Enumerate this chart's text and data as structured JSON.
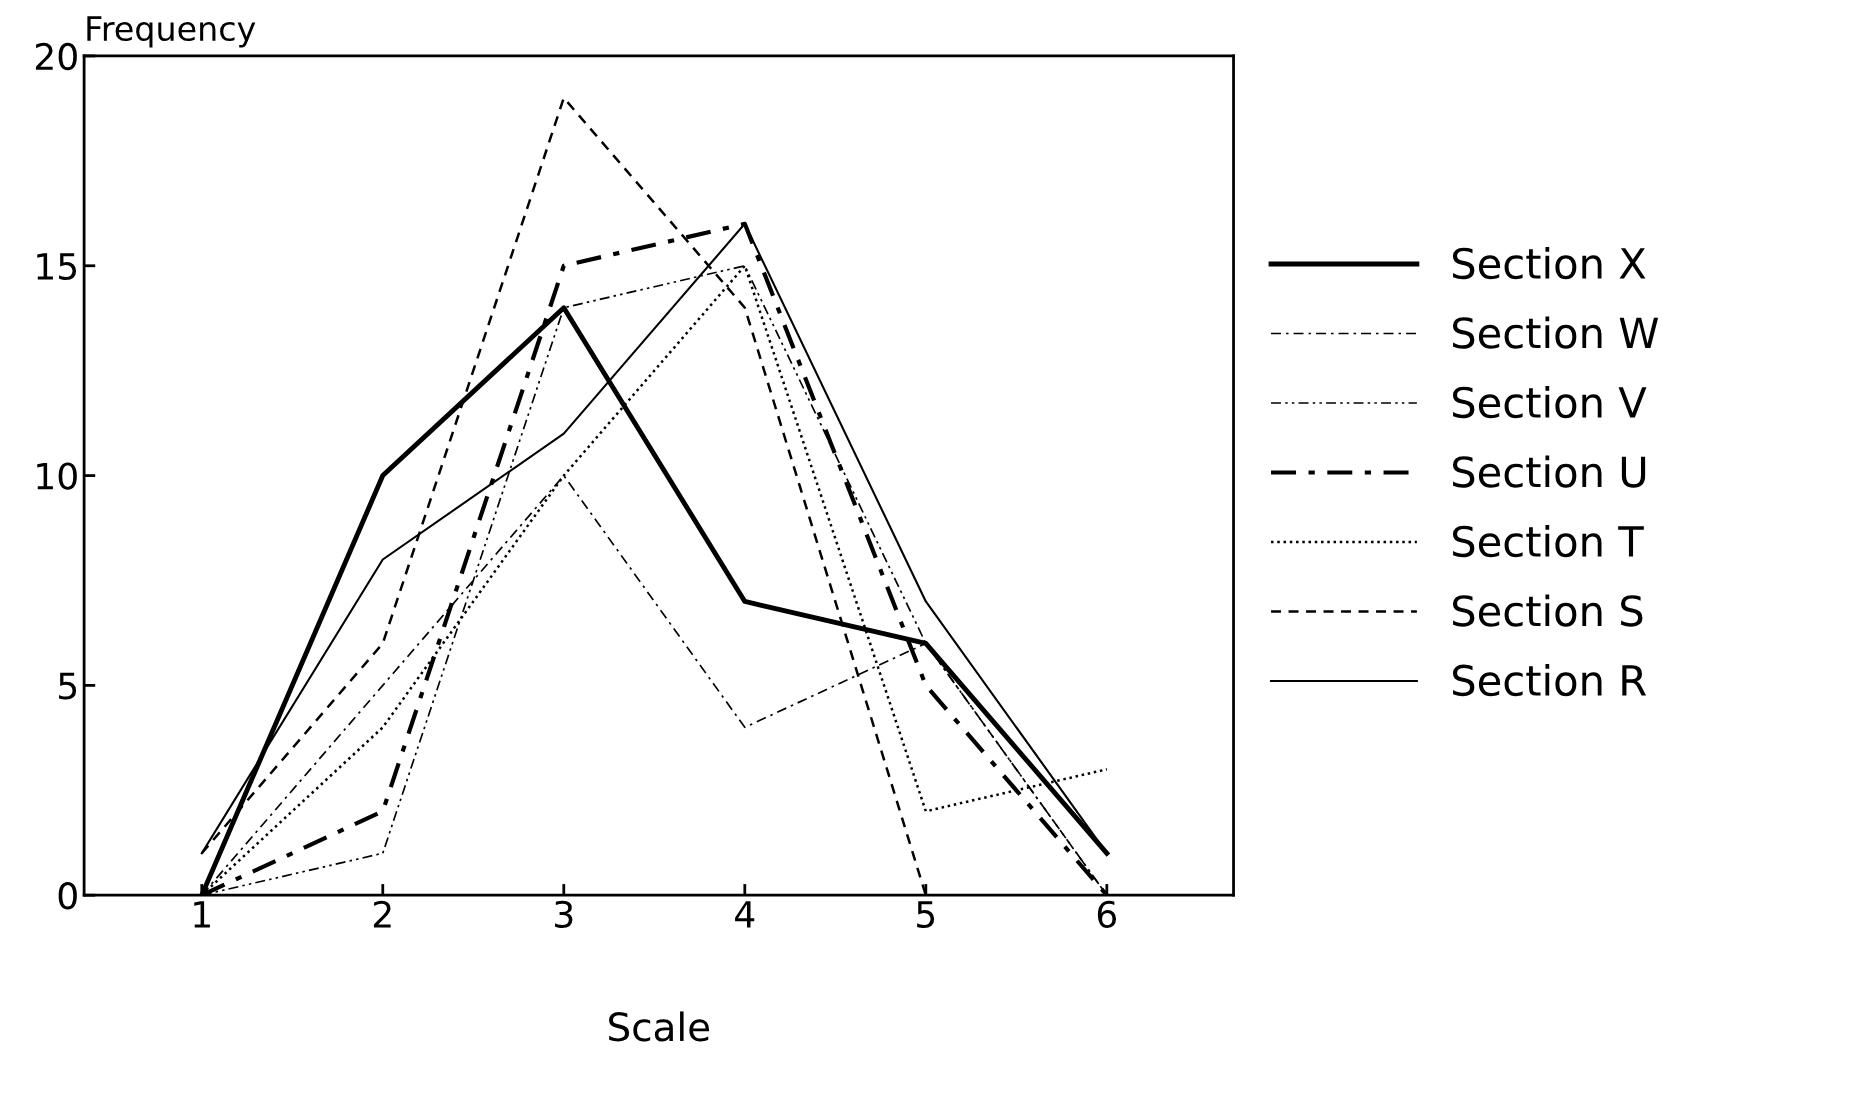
{
  "chart_data": {
    "type": "line",
    "xlabel": "Scale",
    "ylabel": "Frequency",
    "x": [
      1,
      2,
      3,
      4,
      5,
      6
    ],
    "xlim": [
      0.35,
      6.7
    ],
    "xticks": [
      1,
      2,
      3,
      4,
      5,
      6
    ],
    "ylim": [
      0,
      20
    ],
    "yticks": [
      0,
      5,
      10,
      15,
      20
    ],
    "legend": "right",
    "grid": false,
    "series": [
      {
        "name": "Section X",
        "color": "#000000",
        "line_style": "solid",
        "values": [
          0,
          10,
          14,
          7,
          6,
          1
        ]
      },
      {
        "name": "Section W",
        "color": "#000000",
        "line_style": "dashdot",
        "values": [
          0,
          5,
          10,
          4,
          6,
          0
        ]
      },
      {
        "name": "Section V",
        "color": "#000000",
        "line_style": "dashdotdot",
        "values": [
          0,
          1,
          14,
          15,
          6,
          0
        ]
      },
      {
        "name": "Section U",
        "color": "#000000",
        "line_style": "dashdot",
        "values": [
          0,
          2,
          15,
          16,
          5,
          0
        ]
      },
      {
        "name": "Section T",
        "color": "#000000",
        "line_style": "dotted",
        "values": [
          0,
          4,
          10,
          15,
          2,
          3
        ]
      },
      {
        "name": "Section S",
        "color": "#000000",
        "line_style": "dashed",
        "values": [
          1,
          6,
          19,
          14,
          0,
          0
        ]
      },
      {
        "name": "Section R",
        "color": "#000000",
        "line_style": "solid",
        "values": [
          1,
          8,
          11,
          16,
          7,
          1
        ]
      }
    ]
  }
}
